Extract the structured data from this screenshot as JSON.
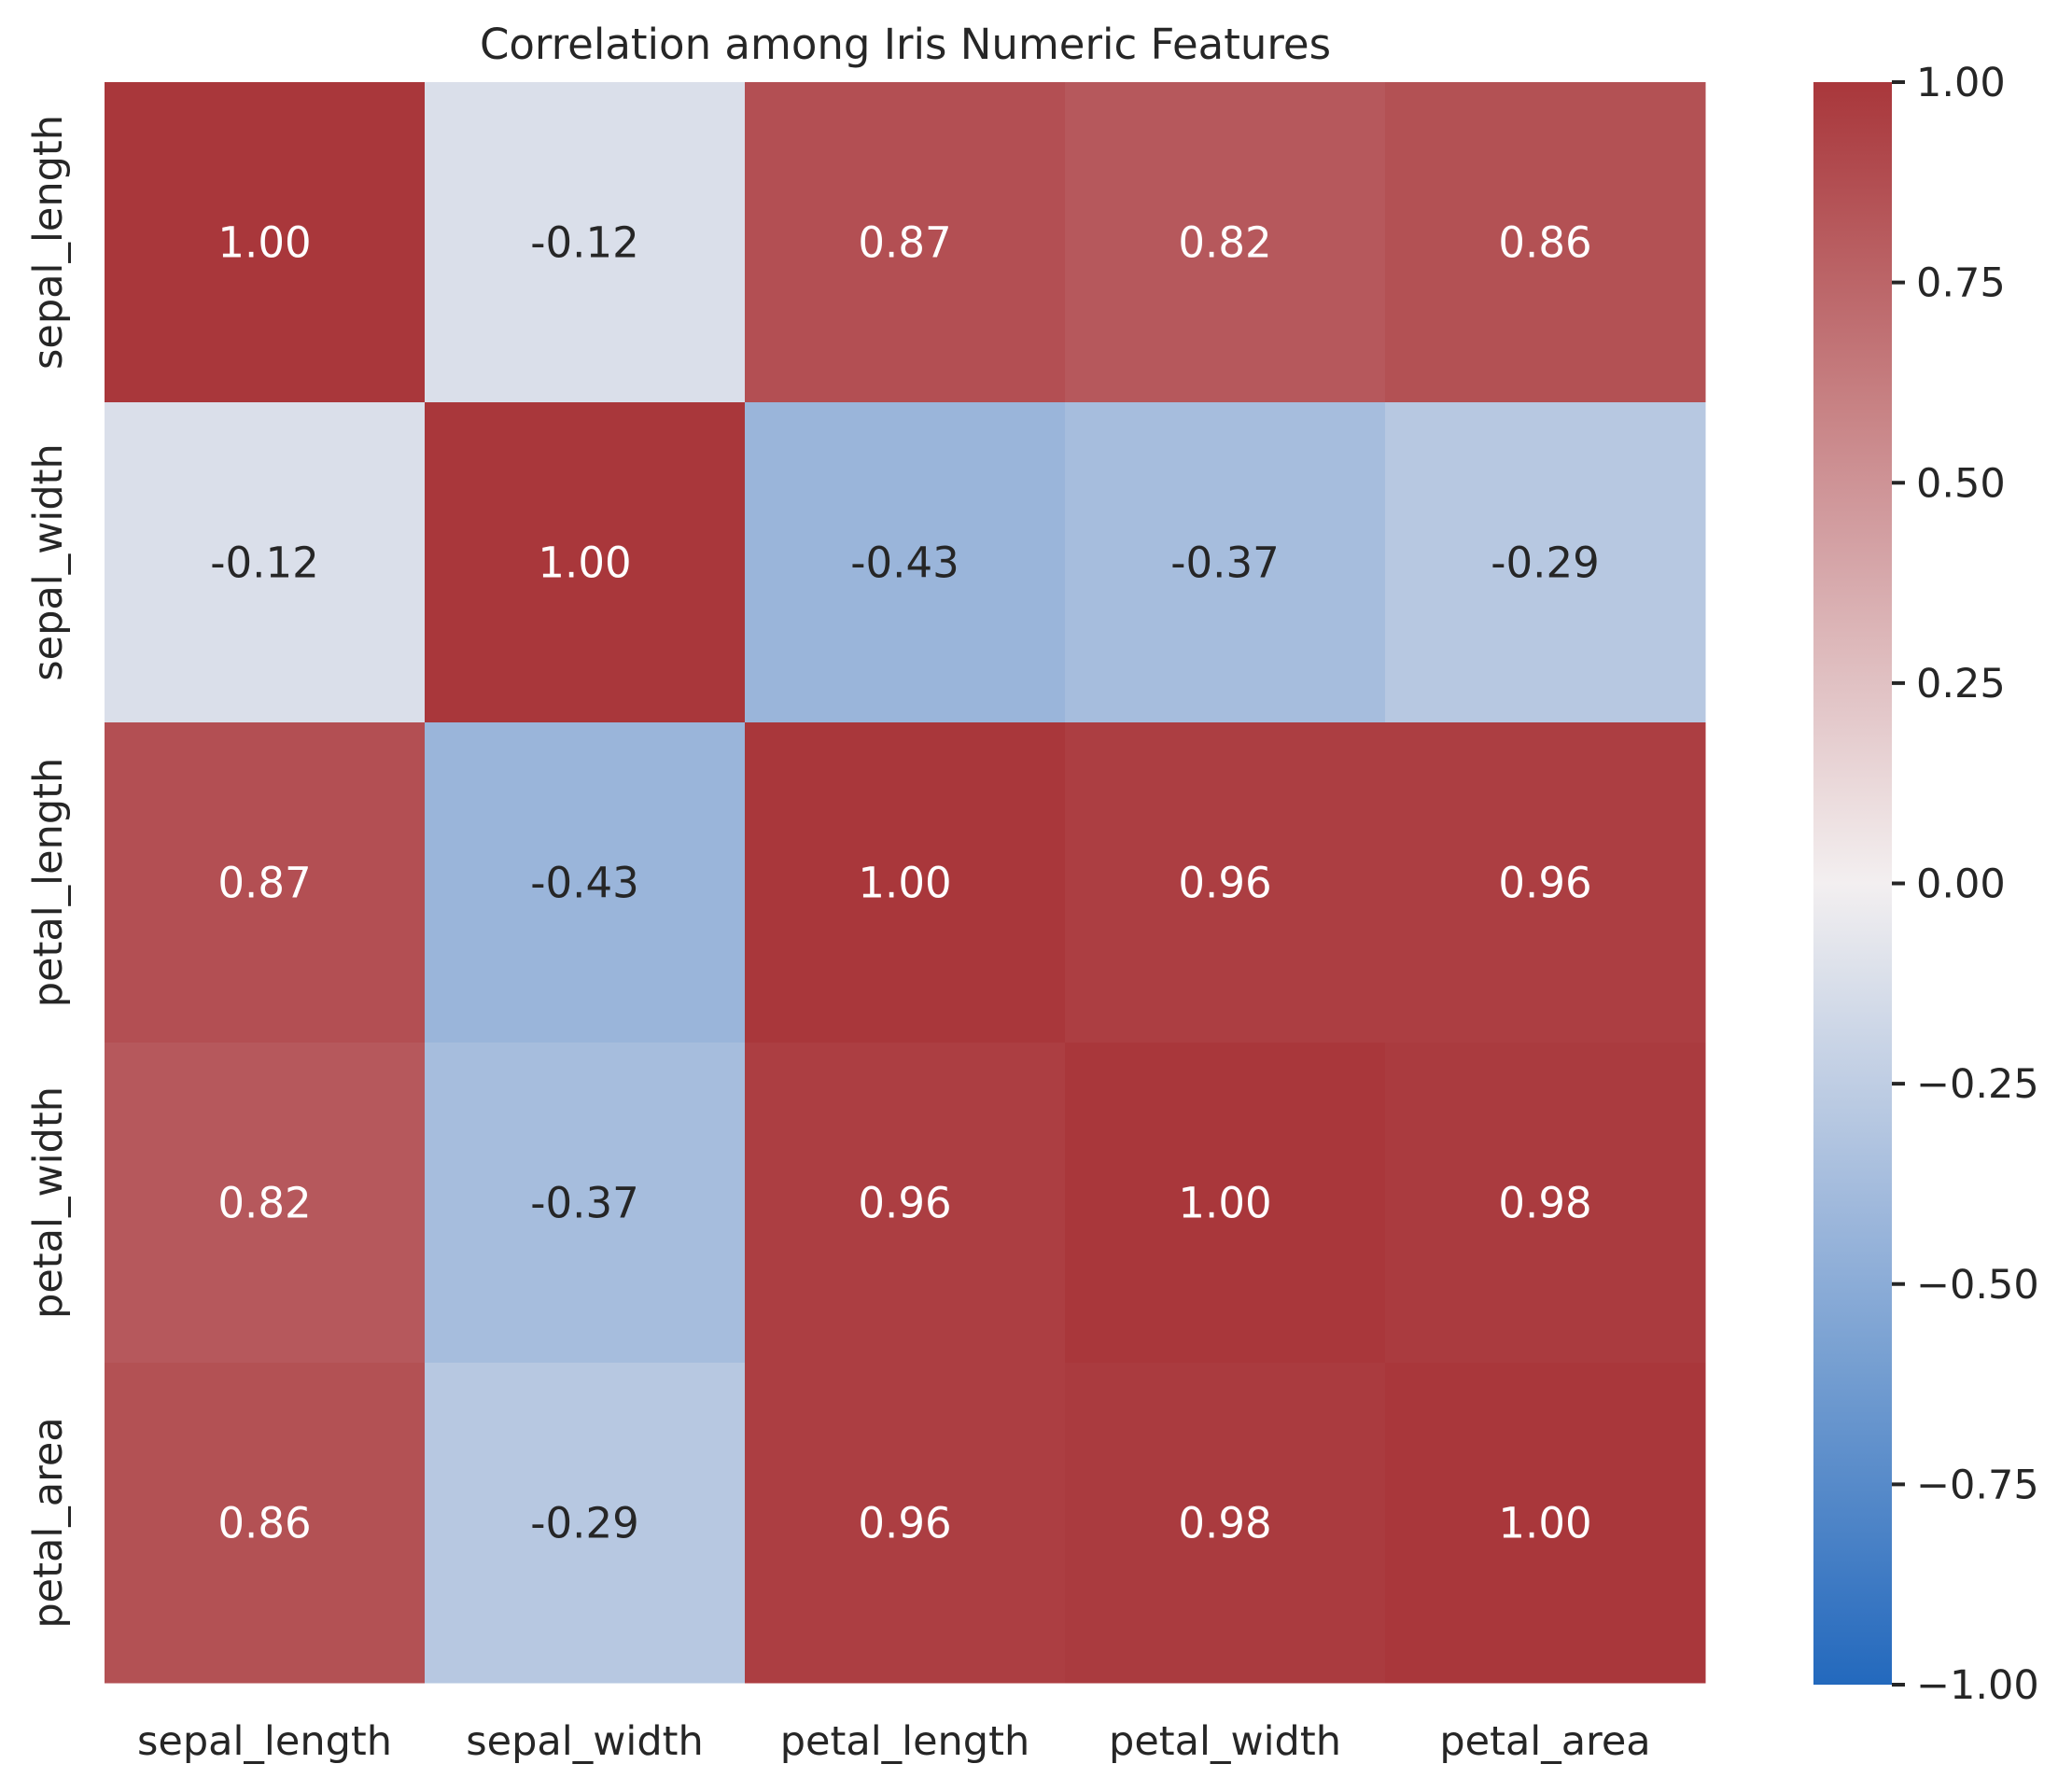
{
  "chart_data": {
    "type": "heatmap",
    "title": "Correlation among Iris Numeric Features",
    "x_labels": [
      "sepal_length",
      "sepal_width",
      "petal_length",
      "petal_width",
      "petal_area"
    ],
    "y_labels": [
      "sepal_length",
      "sepal_width",
      "petal_length",
      "petal_width",
      "petal_area"
    ],
    "values": [
      [
        1.0,
        -0.12,
        0.87,
        0.82,
        0.86
      ],
      [
        -0.12,
        1.0,
        -0.43,
        -0.37,
        -0.29
      ],
      [
        0.87,
        -0.43,
        1.0,
        0.96,
        0.96
      ],
      [
        0.82,
        -0.37,
        0.96,
        1.0,
        0.98
      ],
      [
        0.86,
        -0.29,
        0.96,
        0.98,
        1.0
      ]
    ],
    "cell_labels": [
      [
        "1.00",
        "-0.12",
        "0.87",
        "0.82",
        "0.86"
      ],
      [
        "-0.12",
        "1.00",
        "-0.43",
        "-0.37",
        "-0.29"
      ],
      [
        "0.87",
        "-0.43",
        "1.00",
        "0.96",
        "0.96"
      ],
      [
        "0.82",
        "-0.37",
        "0.96",
        "1.00",
        "0.98"
      ],
      [
        "0.86",
        "-0.29",
        "0.96",
        "0.98",
        "1.00"
      ]
    ],
    "vmin": -1.0,
    "vmax": 1.0,
    "colormap": "diverging blue-white-red (vlag)",
    "colorbar": {
      "ticks": [
        1.0,
        0.75,
        0.5,
        0.25,
        0.0,
        -0.25,
        -0.5,
        -0.75,
        -1.0
      ],
      "tick_labels": [
        "1.00",
        "0.75",
        "0.50",
        "0.25",
        "0.00",
        "−0.25",
        "−0.50",
        "−0.75",
        "−1.00"
      ],
      "position": "right"
    },
    "colors": {
      "low": "#2369bd",
      "mid": "#f3eff0",
      "high": "#a9373b",
      "text_dark": "#262626",
      "text_light": "#ffffff"
    }
  }
}
